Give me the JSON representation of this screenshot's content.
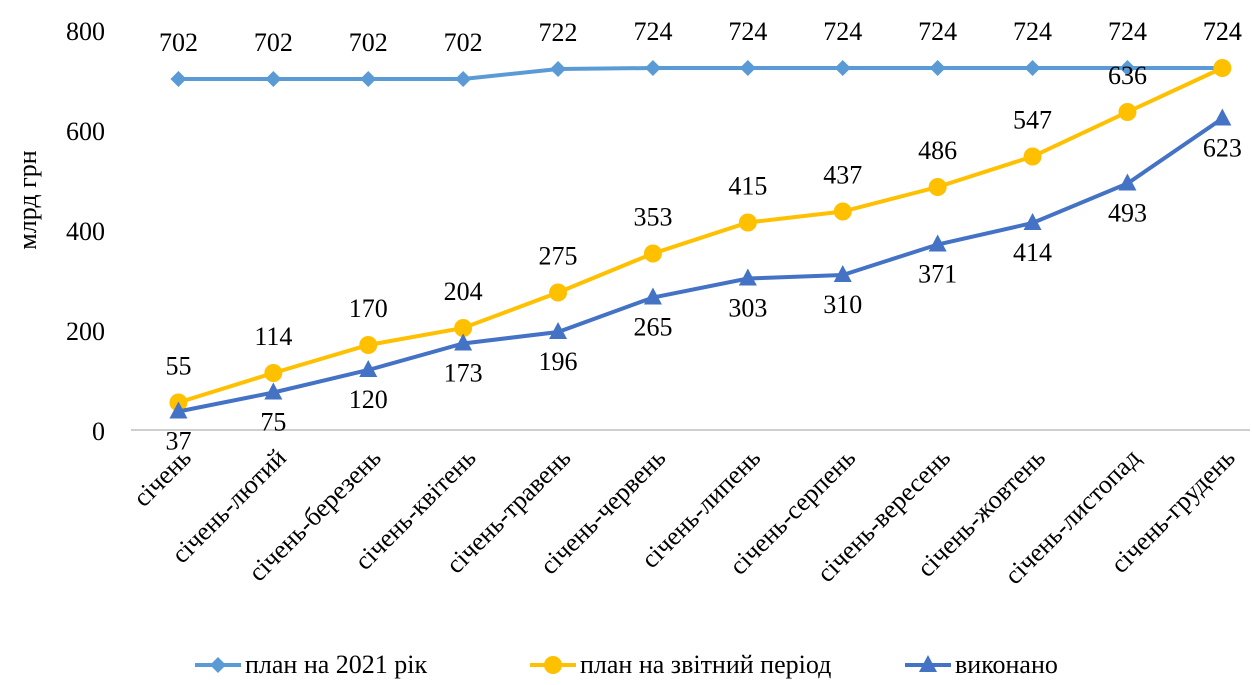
{
  "chart_data": {
    "type": "line",
    "y_label": "млрд грн",
    "categories": [
      "січень",
      "січень-лютий",
      "січень-березень",
      "січень-квітень",
      "січень-травень",
      "січень-червень",
      "січень-липень",
      "січень-серпень",
      "січень-вересень",
      "січень-жовтень",
      "січень-листопад",
      "січень-грудень"
    ],
    "series": [
      {
        "name": "план на 2021 рік",
        "color": "#5b9bd5",
        "marker": "diamond",
        "label_position": "above",
        "values": [
          702,
          702,
          702,
          702,
          722,
          724,
          724,
          724,
          724,
          724,
          724,
          724
        ]
      },
      {
        "name": "план на звітний період",
        "color": "#ffc000",
        "marker": "circle",
        "label_position": "above",
        "values": [
          55,
          114,
          170,
          204,
          275,
          353,
          415,
          437,
          486,
          547,
          636,
          724
        ]
      },
      {
        "name": "виконано",
        "color": "#4472c4",
        "marker": "triangle",
        "label_position": "below",
        "values": [
          37,
          75,
          120,
          173,
          196,
          265,
          303,
          310,
          371,
          414,
          493,
          623
        ]
      }
    ],
    "ylim": [
      0,
      800
    ],
    "yticks": [
      0,
      200,
      400,
      600,
      800
    ],
    "grid": false,
    "legend": "bottom"
  }
}
